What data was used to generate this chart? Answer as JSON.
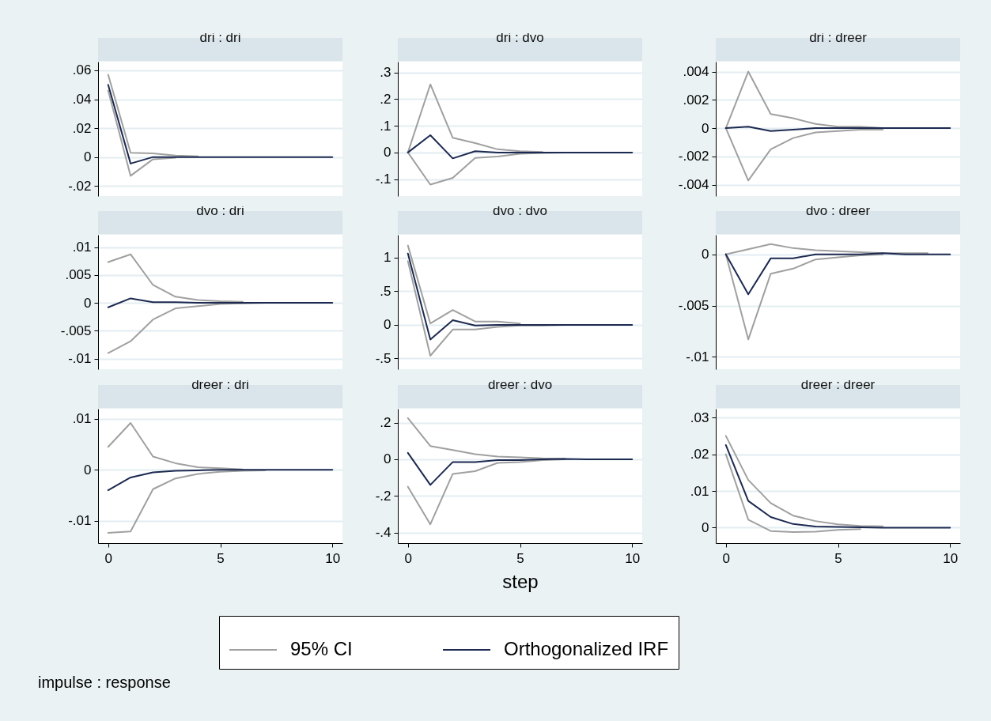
{
  "chart_data": [
    {
      "type": "line",
      "title": "dri : dri",
      "x": [
        0,
        1,
        2,
        3,
        4,
        5,
        6,
        7,
        8,
        9,
        10
      ],
      "xlim": [
        -0.45,
        10.45
      ],
      "xticks": [
        0,
        5,
        10
      ],
      "ylim": [
        -0.027,
        0.066
      ],
      "yticks": [
        {
          "value": -0.02,
          "label": "-.02"
        },
        {
          "value": 0,
          "label": "0"
        },
        {
          "value": 0.02,
          "label": ".02"
        },
        {
          "value": 0.04,
          "label": ".04"
        },
        {
          "value": 0.06,
          "label": ".06"
        }
      ],
      "grid": "y",
      "tick_labels": "y",
      "series": [
        {
          "color": "#a0a0a0",
          "values": [
            0.057,
            0.003,
            0.0025,
            0.001,
            0.0005,
            null,
            null,
            null,
            null,
            null,
            null
          ]
        },
        {
          "color": "#a0a0a0",
          "values": [
            0.046,
            -0.013,
            -0.0015,
            -0.0005,
            null,
            null,
            null,
            null,
            null,
            null,
            null
          ]
        },
        {
          "color": "#1c2951",
          "values": [
            0.05,
            -0.0045,
            0,
            0,
            0,
            0,
            0,
            0,
            0,
            0,
            0
          ]
        }
      ]
    },
    {
      "type": "line",
      "title": "dri : dvo",
      "x": [
        0,
        1,
        2,
        3,
        4,
        5,
        6,
        7,
        8,
        9,
        10
      ],
      "xlim": [
        -0.45,
        10.45
      ],
      "xticks": [
        0,
        5,
        10
      ],
      "ylim": [
        -0.163,
        0.34
      ],
      "yticks": [
        {
          "value": -0.1,
          "label": "-.1"
        },
        {
          "value": 0,
          "label": "0"
        },
        {
          "value": 0.1,
          "label": ".1"
        },
        {
          "value": 0.2,
          "label": ".2"
        },
        {
          "value": 0.3,
          "label": ".3"
        }
      ],
      "grid": "y",
      "tick_labels": "y",
      "series": [
        {
          "color": "#a0a0a0",
          "values": [
            0,
            0.255,
            0.055,
            0.035,
            0.012,
            0.005,
            0.002,
            null,
            null,
            null,
            null
          ]
        },
        {
          "color": "#a0a0a0",
          "values": [
            0,
            -0.12,
            -0.095,
            -0.02,
            -0.015,
            -0.005,
            -0.002,
            0,
            null,
            null,
            null
          ]
        },
        {
          "color": "#1c2951",
          "values": [
            0,
            0.065,
            -0.022,
            0.005,
            0,
            0,
            0,
            0,
            0,
            0,
            0
          ]
        }
      ]
    },
    {
      "type": "line",
      "title": "dri : dreer",
      "x": [
        0,
        1,
        2,
        3,
        4,
        5,
        6,
        7,
        8,
        9,
        10
      ],
      "xlim": [
        -0.45,
        10.45
      ],
      "xticks": [
        0,
        5,
        10
      ],
      "ylim": [
        -0.0048,
        0.0047
      ],
      "yticks": [
        {
          "value": -0.004,
          "label": "-.004"
        },
        {
          "value": -0.002,
          "label": "-.002"
        },
        {
          "value": 0,
          "label": "0"
        },
        {
          "value": 0.002,
          "label": ".002"
        },
        {
          "value": 0.004,
          "label": ".004"
        }
      ],
      "grid": "y",
      "tick_labels": "y",
      "series": [
        {
          "color": "#a0a0a0",
          "values": [
            0,
            0.004,
            0.001,
            0.0007,
            0.0003,
            0.0001,
            0.0001,
            0,
            null,
            null,
            null
          ]
        },
        {
          "color": "#a0a0a0",
          "values": [
            0,
            -0.0037,
            -0.0015,
            -0.0007,
            -0.0003,
            -0.0002,
            -0.0001,
            -0.0001,
            null,
            null,
            null
          ]
        },
        {
          "color": "#1c2951",
          "values": [
            0,
            0.0001,
            -0.0002,
            -0.0001,
            0,
            0,
            0,
            0,
            0,
            0,
            0
          ]
        }
      ]
    },
    {
      "type": "line",
      "title": "dvo : dri",
      "x": [
        0,
        1,
        2,
        3,
        4,
        5,
        6,
        7,
        8,
        9,
        10
      ],
      "xlim": [
        -0.45,
        10.45
      ],
      "xticks": [
        0,
        5,
        10
      ],
      "ylim": [
        -0.0119,
        0.0122
      ],
      "yticks": [
        {
          "value": -0.01,
          "label": "-.01"
        },
        {
          "value": -0.005,
          "label": "-.005"
        },
        {
          "value": 0,
          "label": "0"
        },
        {
          "value": 0.005,
          "label": ".005"
        },
        {
          "value": 0.01,
          "label": ".01"
        }
      ],
      "grid": "y",
      "tick_labels": "y",
      "series": [
        {
          "color": "#a0a0a0",
          "values": [
            0.0073,
            0.0087,
            0.0032,
            0.0011,
            0.0005,
            0.0003,
            0.0002,
            null,
            null,
            null,
            null
          ]
        },
        {
          "color": "#a0a0a0",
          "values": [
            -0.009,
            -0.0069,
            -0.003,
            -0.001,
            -0.0006,
            -0.0002,
            -0.0001,
            0,
            null,
            null,
            null
          ]
        },
        {
          "color": "#1c2951",
          "values": [
            -0.0008,
            0.0008,
            0.0001,
            0.0001,
            0,
            0,
            0,
            0,
            0,
            0,
            0
          ]
        }
      ]
    },
    {
      "type": "line",
      "title": "dvo : dvo",
      "x": [
        0,
        1,
        2,
        3,
        4,
        5,
        6,
        7,
        8,
        9,
        10
      ],
      "xlim": [
        -0.45,
        10.45
      ],
      "xticks": [
        0,
        5,
        10
      ],
      "ylim": [
        -0.66,
        1.34
      ],
      "yticks": [
        {
          "value": -0.5,
          "label": "-.5"
        },
        {
          "value": 0,
          "label": "0"
        },
        {
          "value": 0.5,
          "label": ".5"
        },
        {
          "value": 1,
          "label": "1"
        }
      ],
      "grid": "y",
      "tick_labels": "y",
      "series": [
        {
          "color": "#a0a0a0",
          "values": [
            1.18,
            0.02,
            0.22,
            0.05,
            0.05,
            0.02,
            null,
            null,
            null,
            null,
            null
          ]
        },
        {
          "color": "#a0a0a0",
          "values": [
            0.95,
            -0.46,
            -0.07,
            -0.07,
            -0.03,
            -0.01,
            -0.01,
            0,
            null,
            null,
            null
          ]
        },
        {
          "color": "#1c2951",
          "values": [
            1.06,
            -0.22,
            0.07,
            -0.01,
            0,
            0,
            0,
            0,
            0,
            0,
            0
          ]
        }
      ]
    },
    {
      "type": "line",
      "title": "dvo : dreer",
      "x": [
        0,
        1,
        2,
        3,
        4,
        5,
        6,
        7,
        8,
        9,
        10
      ],
      "xlim": [
        -0.45,
        10.45
      ],
      "xticks": [
        0,
        5,
        10
      ],
      "ylim": [
        -0.0112,
        0.0019
      ],
      "yticks": [
        {
          "value": -0.01,
          "label": "-.01"
        },
        {
          "value": -0.005,
          "label": "-.005"
        },
        {
          "value": 0,
          "label": "0"
        }
      ],
      "grid": "y",
      "tick_labels": "y",
      "series": [
        {
          "color": "#a0a0a0",
          "values": [
            0,
            0.0005,
            0.001,
            0.0006,
            0.0004,
            0.0003,
            0.0002,
            0.0001,
            0.0001,
            0.0001,
            null
          ]
        },
        {
          "color": "#a0a0a0",
          "values": [
            0,
            -0.0083,
            -0.0019,
            -0.0014,
            -0.0005,
            -0.0003,
            -0.0001,
            0,
            null,
            null,
            null
          ]
        },
        {
          "color": "#1c2951",
          "values": [
            0,
            -0.0039,
            -0.0004,
            -0.0004,
            0,
            0,
            0,
            0.0001,
            0,
            0,
            0
          ]
        }
      ]
    },
    {
      "type": "line",
      "title": "dreer : dri",
      "x": [
        0,
        1,
        2,
        3,
        4,
        5,
        6,
        7,
        8,
        9,
        10
      ],
      "xlim": [
        -0.45,
        10.45
      ],
      "xticks": [
        0,
        5,
        10
      ],
      "ylim": [
        -0.0144,
        0.012
      ],
      "yticks": [
        {
          "value": -0.01,
          "label": "-.01"
        },
        {
          "value": 0,
          "label": "0"
        },
        {
          "value": 0.01,
          "label": ".01"
        }
      ],
      "grid": "y",
      "series": [
        {
          "color": "#a0a0a0",
          "values": [
            0.0045,
            0.0092,
            0.0026,
            0.0013,
            0.0005,
            0.0003,
            0.0001,
            null,
            null,
            null,
            null
          ]
        },
        {
          "color": "#a0a0a0",
          "values": [
            -0.0124,
            -0.0121,
            -0.0038,
            -0.0017,
            -0.0008,
            -0.0004,
            -0.0002,
            -0.0001,
            null,
            null,
            null
          ]
        },
        {
          "color": "#1c2951",
          "values": [
            -0.004,
            -0.0015,
            -0.0005,
            -0.0002,
            -0.0001,
            0,
            0,
            0,
            0,
            0,
            0
          ]
        }
      ]
    },
    {
      "type": "line",
      "title": "dreer : dvo",
      "xlabel": "step",
      "legend": "bottom",
      "annotations": [
        "impulse : response"
      ],
      "x": [
        0,
        1,
        2,
        3,
        4,
        5,
        6,
        7,
        8,
        9,
        10
      ],
      "xlim": [
        -0.45,
        10.45
      ],
      "xticks": [
        0,
        5,
        10
      ],
      "ylim": [
        -0.458,
        0.276
      ],
      "yticks": [
        {
          "value": -0.4,
          "label": "-.4"
        },
        {
          "value": -0.2,
          "label": "-.2"
        },
        {
          "value": 0,
          "label": "0"
        },
        {
          "value": 0.2,
          "label": ".2"
        }
      ],
      "grid": "y",
      "series": [
        {
          "name": "95% CI",
          "color": "#a0a0a0",
          "values": [
            0.225,
            0.072,
            0.05,
            0.028,
            0.015,
            0.01,
            0.005,
            0.003,
            null,
            null,
            null
          ]
        },
        {
          "color": "#a0a0a0",
          "values": [
            -0.15,
            -0.355,
            -0.08,
            -0.065,
            -0.02,
            -0.015,
            -0.005,
            0,
            null,
            null,
            null
          ]
        },
        {
          "name": "Orthogonalized IRF",
          "color": "#1c2951",
          "values": [
            0.035,
            -0.14,
            -0.015,
            -0.015,
            -0.005,
            -0.005,
            0,
            0.002,
            0,
            0,
            0
          ]
        }
      ]
    },
    {
      "type": "line",
      "title": "dreer : dreer",
      "x": [
        0,
        1,
        2,
        3,
        4,
        5,
        6,
        7,
        8,
        9,
        10
      ],
      "xlim": [
        -0.45,
        10.45
      ],
      "xticks": [
        0,
        5,
        10
      ],
      "ylim": [
        -0.0042,
        0.0324
      ],
      "yticks": [
        {
          "value": 0,
          "label": "0"
        },
        {
          "value": 0.01,
          "label": ".01"
        },
        {
          "value": 0.02,
          "label": ".02"
        },
        {
          "value": 0.03,
          "label": ".03"
        }
      ],
      "grid": "y",
      "series": [
        {
          "color": "#a0a0a0",
          "values": [
            0.025,
            0.013,
            0.0067,
            0.0033,
            0.0018,
            0.0009,
            0.0005,
            0.0004,
            null,
            null,
            null
          ]
        },
        {
          "color": "#a0a0a0",
          "values": [
            0.02,
            0.0022,
            -0.0009,
            -0.0012,
            -0.0011,
            -0.0006,
            -0.0004,
            null,
            null,
            null,
            null
          ]
        },
        {
          "color": "#1c2951",
          "values": [
            0.0225,
            0.0073,
            0.0029,
            0.001,
            0.0003,
            0.0002,
            0.0001,
            0,
            0,
            0,
            0
          ]
        }
      ]
    }
  ]
}
